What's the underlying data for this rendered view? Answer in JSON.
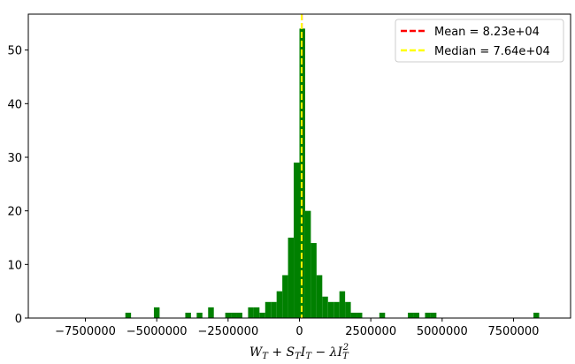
{
  "chart_data": {
    "type": "histogram",
    "xlabel": "W_T + S_T I_T − λ I_T²",
    "ylabel": "",
    "xlim": [
      -9500000,
      9500000
    ],
    "ylim": [
      0,
      56.7
    ],
    "x_ticks": [
      -7500000,
      -5000000,
      -2500000,
      0,
      2500000,
      5000000,
      7500000
    ],
    "x_tick_labels": [
      "−7500000",
      "−5000000",
      "−2500000",
      "0",
      "2500000",
      "5000000",
      "7500000"
    ],
    "y_ticks": [
      0,
      10,
      20,
      30,
      40,
      50
    ],
    "y_tick_labels": [
      "0",
      "10",
      "20",
      "30",
      "40",
      "50"
    ],
    "bar_color": "#008000",
    "bin_width": 200000,
    "bins": [
      {
        "x": -6100000,
        "count": 1
      },
      {
        "x": -5100000,
        "count": 2
      },
      {
        "x": -4000000,
        "count": 1
      },
      {
        "x": -3600000,
        "count": 1
      },
      {
        "x": -3200000,
        "count": 2
      },
      {
        "x": -2600000,
        "count": 1
      },
      {
        "x": -2400000,
        "count": 1
      },
      {
        "x": -2200000,
        "count": 1
      },
      {
        "x": -1800000,
        "count": 2
      },
      {
        "x": -1600000,
        "count": 2
      },
      {
        "x": -1400000,
        "count": 1
      },
      {
        "x": -1200000,
        "count": 3
      },
      {
        "x": -1000000,
        "count": 3
      },
      {
        "x": -800000,
        "count": 5
      },
      {
        "x": -600000,
        "count": 8
      },
      {
        "x": -400000,
        "count": 15
      },
      {
        "x": -200000,
        "count": 29
      },
      {
        "x": 0,
        "count": 54
      },
      {
        "x": 200000,
        "count": 20
      },
      {
        "x": 400000,
        "count": 14
      },
      {
        "x": 600000,
        "count": 8
      },
      {
        "x": 800000,
        "count": 4
      },
      {
        "x": 1000000,
        "count": 3
      },
      {
        "x": 1200000,
        "count": 3
      },
      {
        "x": 1400000,
        "count": 5
      },
      {
        "x": 1600000,
        "count": 3
      },
      {
        "x": 1800000,
        "count": 1
      },
      {
        "x": 2000000,
        "count": 1
      },
      {
        "x": 2800000,
        "count": 1
      },
      {
        "x": 3800000,
        "count": 1
      },
      {
        "x": 4000000,
        "count": 1
      },
      {
        "x": 4400000,
        "count": 1
      },
      {
        "x": 4600000,
        "count": 1
      },
      {
        "x": 8200000,
        "count": 1
      }
    ],
    "mean": {
      "value": 82300,
      "label": "Mean = 8.23e+04",
      "color": "#ff0000"
    },
    "median": {
      "value": 76400,
      "label": "Median = 7.64e+04",
      "color": "#ffff00"
    },
    "legend_position": "upper right",
    "grid": false
  }
}
